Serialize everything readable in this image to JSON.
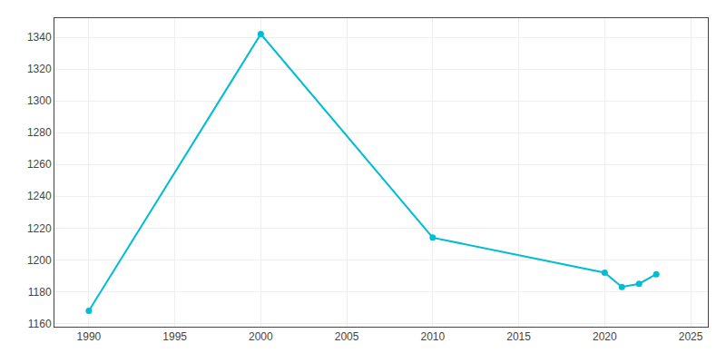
{
  "chart_data": {
    "type": "line",
    "x": [
      1990,
      2000,
      2010,
      2020,
      2021,
      2022,
      2023
    ],
    "values": [
      1168,
      1342,
      1214,
      1192,
      1183,
      1185,
      1191
    ],
    "color": "#00bcd4",
    "marker": "circle",
    "xlim": [
      1988,
      2026
    ],
    "ylim": [
      1158,
      1352
    ],
    "xticks": [
      1990,
      1995,
      2000,
      2005,
      2010,
      2015,
      2020,
      2025
    ],
    "yticks": [
      1160,
      1180,
      1200,
      1220,
      1240,
      1260,
      1280,
      1300,
      1320,
      1340
    ],
    "grid": true
  }
}
